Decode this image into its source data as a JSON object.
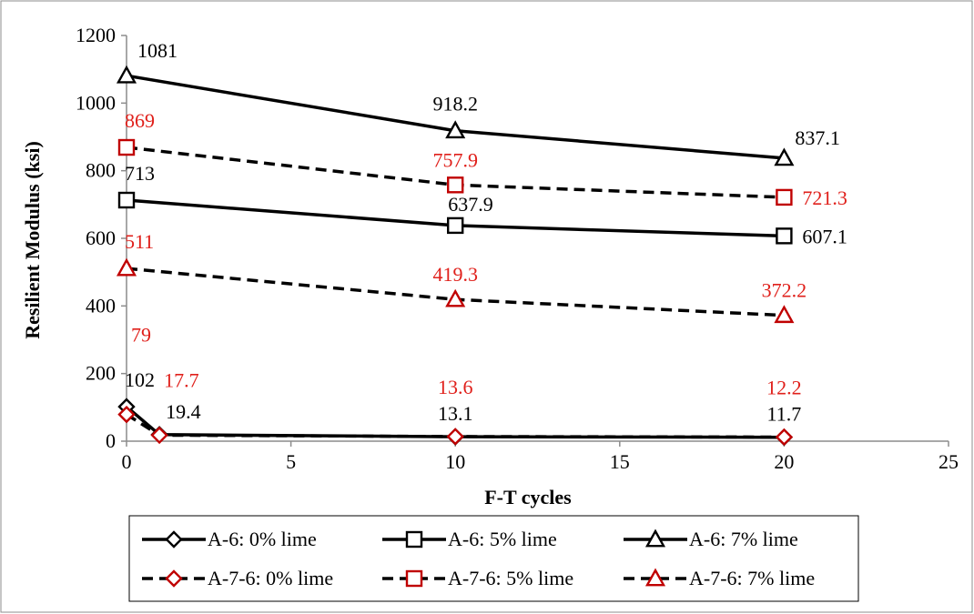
{
  "chart_data": {
    "type": "line",
    "xlabel": "F-T cycles",
    "ylabel": "Resilient Modulus (ksi)",
    "xlim": [
      0,
      25
    ],
    "ylim": [
      0,
      1200
    ],
    "x_ticks": [
      0,
      5,
      10,
      15,
      20,
      25
    ],
    "y_ticks": [
      0,
      200,
      400,
      600,
      800,
      1000,
      1200
    ],
    "grid": false,
    "legend_position": "bottom",
    "colors": {
      "black": "#000000",
      "red": "#e0201b",
      "marker_red": "#c00000"
    },
    "series": [
      {
        "name": "A-6: 0% lime",
        "x": [
          0,
          1,
          10,
          20
        ],
        "y": [
          102,
          19.4,
          13.1,
          11.7
        ],
        "labels": [
          "102",
          "19.4",
          "13.1",
          "11.7"
        ],
        "marker": "diamond",
        "line": "solid",
        "color": "black"
      },
      {
        "name": "A-6: 5% lime",
        "x": [
          0,
          10,
          20
        ],
        "y": [
          713,
          637.9,
          607.1
        ],
        "labels": [
          "713",
          "637.9",
          "607.1"
        ],
        "marker": "square",
        "line": "solid",
        "color": "black"
      },
      {
        "name": "A-6: 7% lime",
        "x": [
          0,
          10,
          20
        ],
        "y": [
          1081,
          918.2,
          837.1
        ],
        "labels": [
          "1081",
          "918.2",
          "837.1"
        ],
        "marker": "triangle",
        "line": "solid",
        "color": "black"
      },
      {
        "name": "A-7-6: 0% lime",
        "x": [
          0,
          1,
          10,
          20
        ],
        "y": [
          79,
          17.7,
          13.6,
          12.2
        ],
        "labels": [
          "79",
          "17.7",
          "13.6",
          "12.2"
        ],
        "marker": "diamond",
        "line": "dashed",
        "color": "red"
      },
      {
        "name": "A-7-6: 5% lime",
        "x": [
          0,
          10,
          20
        ],
        "y": [
          869,
          757.9,
          721.3
        ],
        "labels": [
          "869",
          "757.9",
          "721.3"
        ],
        "marker": "square",
        "line": "dashed",
        "color": "red"
      },
      {
        "name": "A-7-6: 7% lime",
        "x": [
          0,
          10,
          20
        ],
        "y": [
          511,
          419.3,
          372.2
        ],
        "labels": [
          "511",
          "419.3",
          "372.2"
        ],
        "marker": "triangle",
        "line": "dashed",
        "color": "red"
      }
    ]
  }
}
